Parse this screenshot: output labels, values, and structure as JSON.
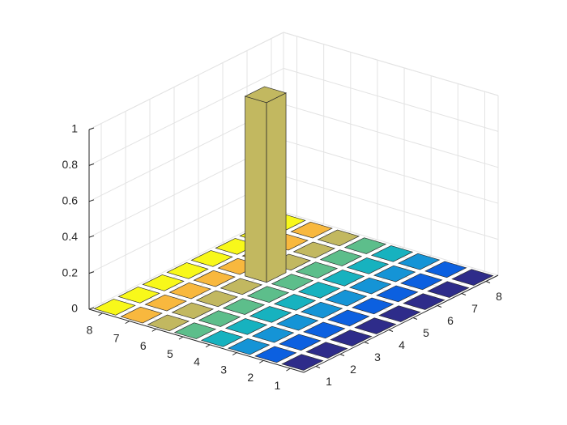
{
  "chart_data": {
    "type": "bar3",
    "series": [
      {
        "color": "#2e2c8a",
        "values": [
          0,
          0,
          0,
          0,
          0,
          0,
          0,
          0
        ]
      },
      {
        "color": "#0c60e0",
        "values": [
          0,
          0,
          0,
          0,
          0,
          0,
          0,
          0
        ]
      },
      {
        "color": "#1594d6",
        "values": [
          0,
          0,
          0,
          0,
          0,
          0,
          0,
          0
        ]
      },
      {
        "color": "#17b2bf",
        "values": [
          0,
          0,
          0,
          0,
          0,
          0,
          0,
          0
        ]
      },
      {
        "color": "#5dbe8b",
        "values": [
          0,
          0,
          0,
          0,
          0,
          0,
          0,
          0
        ]
      },
      {
        "color": "#c2b860",
        "values": [
          0,
          0,
          0,
          0,
          1,
          0,
          0,
          0
        ]
      },
      {
        "color": "#f8b83e",
        "values": [
          0,
          0,
          0,
          0,
          0,
          0,
          0,
          0
        ]
      },
      {
        "color": "#f8f81a",
        "values": [
          0,
          0,
          0,
          0,
          0,
          0,
          0,
          0
        ]
      }
    ],
    "xlim": [
      0.5,
      8.5
    ],
    "xticks": [
      1,
      2,
      3,
      4,
      5,
      6,
      7,
      8
    ],
    "ylim": [
      0.5,
      8.5
    ],
    "yticks": [
      1,
      2,
      3,
      4,
      5,
      6,
      7,
      8
    ],
    "zlim": [
      0,
      1
    ],
    "zticks": [
      0,
      0.2,
      0.4,
      0.6,
      0.8,
      1
    ],
    "grid": true
  }
}
